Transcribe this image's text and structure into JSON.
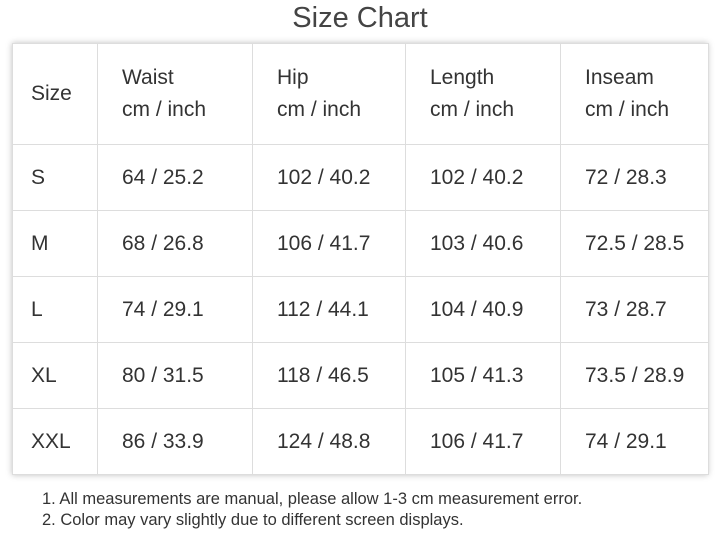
{
  "title": "Size Chart",
  "table": {
    "header": [
      {
        "name": "Size"
      },
      {
        "name": "Waist",
        "unit": "cm / inch"
      },
      {
        "name": "Hip",
        "unit": "cm / inch"
      },
      {
        "name": "Length",
        "unit": "cm / inch"
      },
      {
        "name": "Inseam",
        "unit": "cm / inch"
      }
    ],
    "rows": [
      [
        "S",
        "64 / 25.2",
        "102 / 40.2",
        "102 / 40.2",
        "72 / 28.3"
      ],
      [
        "M",
        "68 / 26.8",
        "106 / 41.7",
        "103 / 40.6",
        "72.5 / 28.5"
      ],
      [
        "L",
        "74 / 29.1",
        "112 / 44.1",
        "104 / 40.9",
        "73 / 28.7"
      ],
      [
        "XL",
        "80 / 31.5",
        "118 / 46.5",
        "105 / 41.3",
        "73.5 / 28.9"
      ],
      [
        "XXL",
        "86 / 33.9",
        "124 / 48.8",
        "106 / 41.7",
        "74 / 29.1"
      ]
    ]
  },
  "notes": [
    "1. All measurements are manual, please allow 1-3 cm measurement error.",
    "2. Color may vary slightly due to different screen displays."
  ]
}
